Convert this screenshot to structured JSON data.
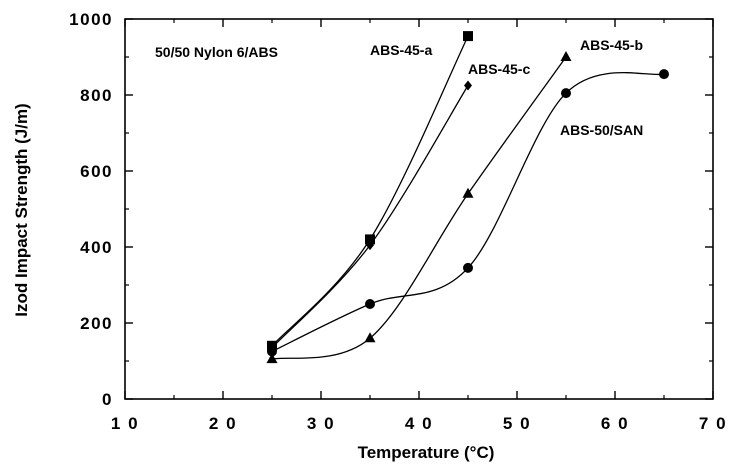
{
  "chart_data": {
    "type": "scatter",
    "title": "",
    "xlabel": "Temperature (°C)",
    "ylabel": "Izod Impact Strength (J/m)",
    "xlim": [
      10,
      70
    ],
    "ylim": [
      0,
      1000
    ],
    "xticks": [
      10,
      20,
      30,
      40,
      50,
      60,
      70
    ],
    "yticks": [
      0,
      200,
      400,
      600,
      800,
      1000
    ],
    "grid": false,
    "annotation": "50/50 Nylon 6/ABS",
    "series": [
      {
        "name": "ABS-45-a",
        "marker": "square",
        "x": [
          25,
          35,
          45
        ],
        "y": [
          140,
          420,
          955
        ]
      },
      {
        "name": "ABS-45-c",
        "marker": "diamond",
        "x": [
          25,
          35,
          45
        ],
        "y": [
          135,
          405,
          825
        ]
      },
      {
        "name": "ABS-45-b",
        "marker": "triangle",
        "x": [
          25,
          35,
          45,
          55
        ],
        "y": [
          105,
          160,
          540,
          900
        ]
      },
      {
        "name": "ABS-50/SAN",
        "marker": "circle",
        "x": [
          25,
          35,
          45,
          55,
          65
        ],
        "y": [
          125,
          250,
          345,
          805,
          855
        ]
      }
    ]
  }
}
